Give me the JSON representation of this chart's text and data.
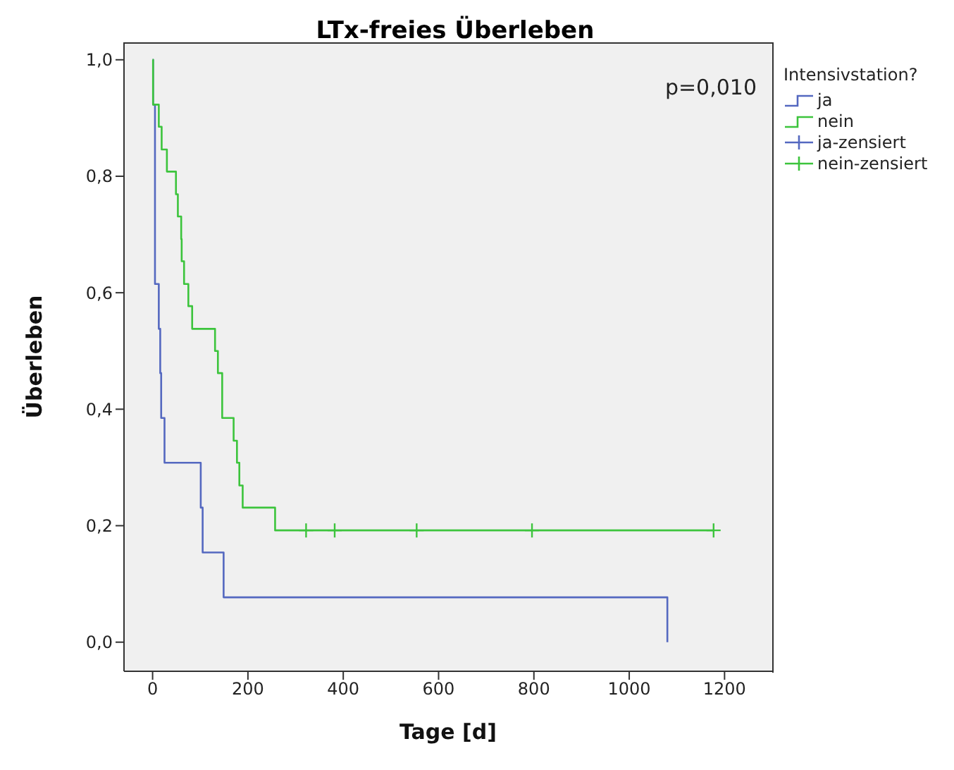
{
  "chart_data": {
    "type": "step",
    "title": "LTx-freies Überleben",
    "xlabel": "Tage [d]",
    "ylabel": "Überleben",
    "legend_title": "Intensivstation?",
    "legend": "top right",
    "annotations": [
      "p=0,010"
    ],
    "xlim": [
      -60,
      1300
    ],
    "xticks": [
      0,
      200,
      400,
      600,
      800,
      1000,
      1200
    ],
    "ylim": [
      -0.05,
      1.03
    ],
    "yticks": [
      {
        "value": 0,
        "label": "0,0"
      },
      {
        "value": 0.2,
        "label": "0,2"
      },
      {
        "value": 0.4,
        "label": "0,4"
      },
      {
        "value": 0.6,
        "label": "0,6"
      },
      {
        "value": 0.8,
        "label": "0,8"
      },
      {
        "value": 1,
        "label": "1,0"
      }
    ],
    "series": [
      {
        "name": "ja",
        "color": "#5468c0",
        "x": [
          0,
          1,
          5,
          13,
          16,
          18,
          25,
          101,
          105,
          149,
          1080
        ],
        "values": [
          1,
          0.923,
          0.615,
          0.538,
          0.462,
          0.385,
          0.308,
          0.231,
          0.154,
          0.077,
          0
        ]
      },
      {
        "name": "nein",
        "color": "#3cc43c",
        "x": [
          0,
          1,
          13,
          19,
          30,
          49,
          53,
          60,
          61,
          66,
          75,
          83,
          131,
          137,
          146,
          170,
          177,
          182,
          189,
          257,
          1177
        ],
        "values": [
          1,
          0.923,
          0.885,
          0.846,
          0.808,
          0.769,
          0.731,
          0.692,
          0.654,
          0.615,
          0.577,
          0.538,
          0.5,
          0.462,
          0.385,
          0.346,
          0.308,
          0.269,
          0.231,
          0.192,
          0.192
        ]
      },
      {
        "name": "ja-zensiert",
        "type": "scatter",
        "marker": "cross",
        "color": "#5468c0"
      },
      {
        "name": "nein-zensiert",
        "type": "scatter",
        "marker": "cross",
        "color": "#3cc43c",
        "x": [
          322,
          382,
          554,
          796,
          1177
        ],
        "values": [
          0.192,
          0.192,
          0.192,
          0.192,
          0.192
        ]
      }
    ]
  }
}
